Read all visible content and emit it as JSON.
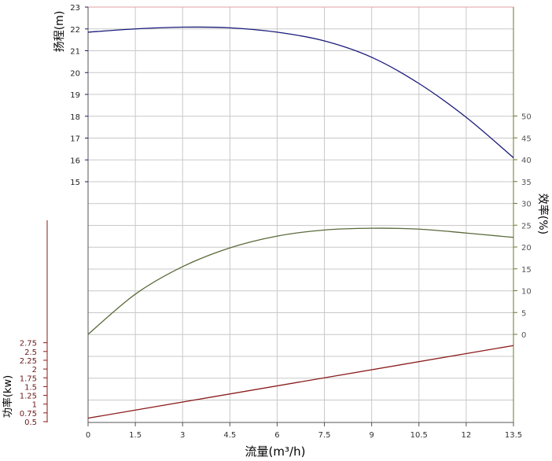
{
  "chart_data": {
    "type": "line",
    "grid": true,
    "colors": {
      "head": "#1a1a7a",
      "efficiency": "#5a6a3a",
      "power": "#8a1a1a",
      "head_axis": "#1a1a7a",
      "efficiency_axis": "#6a7a2a",
      "power_axis": "#8a1a1a",
      "x_axis": "#555555",
      "grid": "#c8c8c8"
    },
    "x_axis": {
      "label": "流量(m³/h)",
      "range": [
        0,
        13.5
      ],
      "ticks": [
        "0",
        "1.5",
        "3",
        "4.5",
        "6",
        "7.5",
        "9",
        "10.5",
        "12",
        "13.5"
      ]
    },
    "head_axis": {
      "label": "扬程(m)",
      "ticks": [
        "15",
        "16",
        "17",
        "18",
        "19",
        "20",
        "21",
        "22",
        "23"
      ]
    },
    "efficiency_axis": {
      "label": "效率(%)",
      "ticks": [
        "0",
        "5",
        "10",
        "15",
        "20",
        "25",
        "30",
        "35",
        "40",
        "45",
        "50"
      ]
    },
    "power_axis": {
      "label": "功率(kw)",
      "ticks": [
        "0.5",
        "0.75",
        "1",
        "1.25",
        "1.5",
        "1.75",
        "2",
        "2.25",
        "2.5",
        "2.75"
      ]
    },
    "series": [
      {
        "key": "head",
        "axis": "head",
        "x": [
          0,
          1.5,
          3,
          4.5,
          6,
          7.5,
          9,
          10.5,
          12,
          13.5
        ],
        "values": [
          21.85,
          22.0,
          22.08,
          22.05,
          21.85,
          21.45,
          20.7,
          19.5,
          17.95,
          16.1
        ]
      },
      {
        "key": "efficiency",
        "axis": "efficiency",
        "x": [
          0,
          1.5,
          3,
          4.5,
          6,
          7.5,
          9,
          10.5,
          12,
          13.5
        ],
        "values": [
          0,
          9.2,
          15.5,
          19.8,
          22.5,
          23.9,
          24.3,
          24.1,
          23.2,
          22.2
        ]
      },
      {
        "key": "power",
        "axis": "power",
        "x": [
          0,
          13.5
        ],
        "values": [
          0.6,
          2.67
        ]
      }
    ]
  }
}
